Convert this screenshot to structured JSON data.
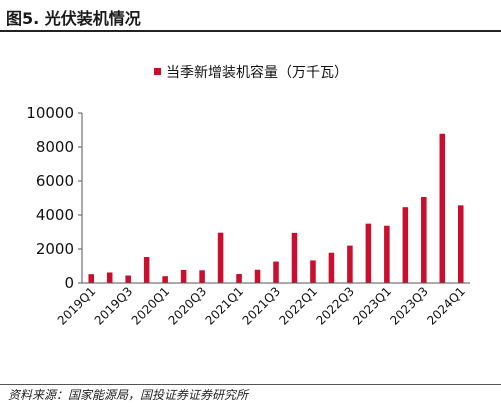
{
  "figure": {
    "title": "图5. 光伏装机情况",
    "source": "资料来源：国家能源局，国投证券证券研究所"
  },
  "chart_data": {
    "type": "bar",
    "categories": [
      "2019Q1",
      "2019Q2",
      "2019Q3",
      "2019Q4",
      "2020Q1",
      "2020Q2",
      "2020Q3",
      "2020Q4",
      "2021Q1",
      "2021Q2",
      "2021Q3",
      "2021Q4",
      "2022Q1",
      "2022Q2",
      "2022Q3",
      "2022Q4",
      "2023Q1",
      "2023Q2",
      "2023Q3",
      "2023Q4",
      "2024Q1"
    ],
    "x_tick_labels": [
      "2019Q1",
      "2019Q3",
      "2020Q1",
      "2020Q3",
      "2021Q1",
      "2021Q3",
      "2022Q1",
      "2022Q3",
      "2023Q1",
      "2023Q3",
      "2024Q1"
    ],
    "series": [
      {
        "name": "当季新增装机容量（万千瓦）",
        "color": "#c8102e",
        "values": [
          520,
          620,
          440,
          1530,
          400,
          770,
          750,
          2960,
          530,
          780,
          1260,
          2950,
          1330,
          1780,
          2200,
          3490,
          3370,
          4460,
          5060,
          8780,
          4570
        ]
      }
    ],
    "ylim": [
      0,
      10000
    ],
    "y_ticks": [
      0,
      2000,
      4000,
      6000,
      8000,
      10000
    ],
    "xlabel": "",
    "ylabel": "",
    "legend_position": "top-center",
    "grid": false
  }
}
